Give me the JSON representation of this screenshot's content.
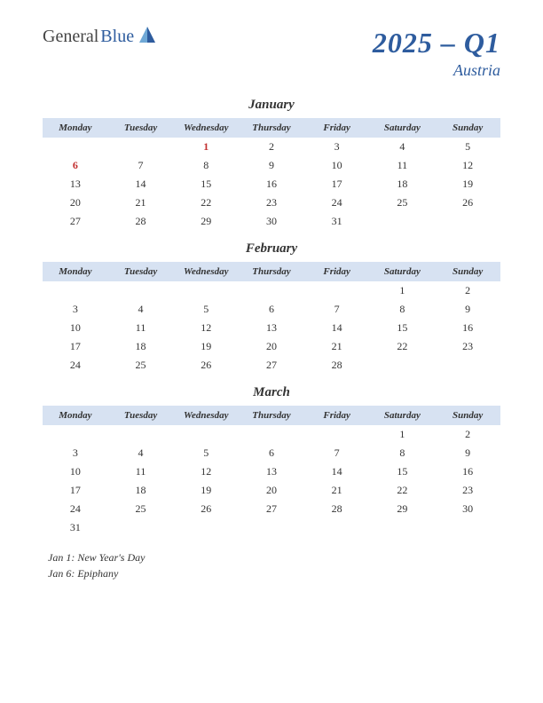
{
  "logo": {
    "general": "General",
    "blue": "Blue"
  },
  "title": "2025 – Q1",
  "country": "Austria",
  "weekdays": [
    "Monday",
    "Tuesday",
    "Wednesday",
    "Thursday",
    "Friday",
    "Saturday",
    "Sunday"
  ],
  "header_bg": "#d7e2f2",
  "accent": "#2e5c9e",
  "holiday_color": "#c23030",
  "months": [
    {
      "name": "January",
      "weeks": [
        [
          null,
          null,
          {
            "d": 1,
            "h": true
          },
          {
            "d": 2
          },
          {
            "d": 3
          },
          {
            "d": 4
          },
          {
            "d": 5
          }
        ],
        [
          {
            "d": 6,
            "h": true
          },
          {
            "d": 7
          },
          {
            "d": 8
          },
          {
            "d": 9
          },
          {
            "d": 10
          },
          {
            "d": 11
          },
          {
            "d": 12
          }
        ],
        [
          {
            "d": 13
          },
          {
            "d": 14
          },
          {
            "d": 15
          },
          {
            "d": 16
          },
          {
            "d": 17
          },
          {
            "d": 18
          },
          {
            "d": 19
          }
        ],
        [
          {
            "d": 20
          },
          {
            "d": 21
          },
          {
            "d": 22
          },
          {
            "d": 23
          },
          {
            "d": 24
          },
          {
            "d": 25
          },
          {
            "d": 26
          }
        ],
        [
          {
            "d": 27
          },
          {
            "d": 28
          },
          {
            "d": 29
          },
          {
            "d": 30
          },
          {
            "d": 31
          },
          null,
          null
        ]
      ]
    },
    {
      "name": "February",
      "weeks": [
        [
          null,
          null,
          null,
          null,
          null,
          {
            "d": 1
          },
          {
            "d": 2
          }
        ],
        [
          {
            "d": 3
          },
          {
            "d": 4
          },
          {
            "d": 5
          },
          {
            "d": 6
          },
          {
            "d": 7
          },
          {
            "d": 8
          },
          {
            "d": 9
          }
        ],
        [
          {
            "d": 10
          },
          {
            "d": 11
          },
          {
            "d": 12
          },
          {
            "d": 13
          },
          {
            "d": 14
          },
          {
            "d": 15
          },
          {
            "d": 16
          }
        ],
        [
          {
            "d": 17
          },
          {
            "d": 18
          },
          {
            "d": 19
          },
          {
            "d": 20
          },
          {
            "d": 21
          },
          {
            "d": 22
          },
          {
            "d": 23
          }
        ],
        [
          {
            "d": 24
          },
          {
            "d": 25
          },
          {
            "d": 26
          },
          {
            "d": 27
          },
          {
            "d": 28
          },
          null,
          null
        ]
      ]
    },
    {
      "name": "March",
      "weeks": [
        [
          null,
          null,
          null,
          null,
          null,
          {
            "d": 1
          },
          {
            "d": 2
          }
        ],
        [
          {
            "d": 3
          },
          {
            "d": 4
          },
          {
            "d": 5
          },
          {
            "d": 6
          },
          {
            "d": 7
          },
          {
            "d": 8
          },
          {
            "d": 9
          }
        ],
        [
          {
            "d": 10
          },
          {
            "d": 11
          },
          {
            "d": 12
          },
          {
            "d": 13
          },
          {
            "d": 14
          },
          {
            "d": 15
          },
          {
            "d": 16
          }
        ],
        [
          {
            "d": 17
          },
          {
            "d": 18
          },
          {
            "d": 19
          },
          {
            "d": 20
          },
          {
            "d": 21
          },
          {
            "d": 22
          },
          {
            "d": 23
          }
        ],
        [
          {
            "d": 24
          },
          {
            "d": 25
          },
          {
            "d": 26
          },
          {
            "d": 27
          },
          {
            "d": 28
          },
          {
            "d": 29
          },
          {
            "d": 30
          }
        ],
        [
          {
            "d": 31
          },
          null,
          null,
          null,
          null,
          null,
          null
        ]
      ]
    }
  ],
  "holidays": [
    "Jan 1: New Year's Day",
    "Jan 6: Epiphany"
  ]
}
